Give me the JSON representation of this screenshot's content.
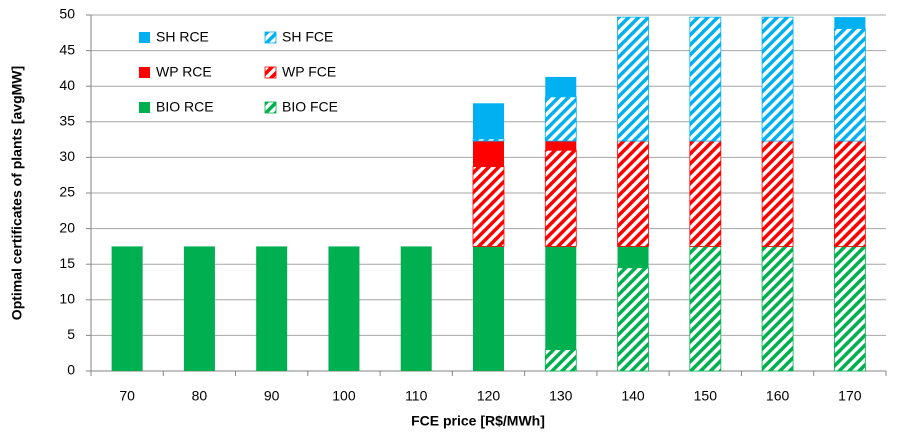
{
  "chart_data": {
    "type": "stacked_bar",
    "xlabel": "FCE price [R$/MWh]",
    "ylabel": "Optimal certificates of plants [avgMW]",
    "categories": [
      "70",
      "80",
      "90",
      "100",
      "110",
      "120",
      "130",
      "140",
      "150",
      "160",
      "170"
    ],
    "series": [
      {
        "name": "BIO FCE",
        "color": "#00b050",
        "fill": "hatch",
        "values": [
          0,
          0,
          0,
          0,
          0,
          0,
          3,
          14.5,
          17.5,
          17.5,
          17.5
        ]
      },
      {
        "name": "BIO RCE",
        "color": "#00b050",
        "fill": "solid",
        "values": [
          17.5,
          17.5,
          17.5,
          17.5,
          17.5,
          17.5,
          14.5,
          3,
          0,
          0,
          0
        ]
      },
      {
        "name": "WP FCE",
        "color": "#ff0000",
        "fill": "hatch",
        "values": [
          0,
          0,
          0,
          0,
          0,
          11.2,
          13.5,
          14.8,
          14.8,
          14.8,
          14.8
        ]
      },
      {
        "name": "WP RCE",
        "color": "#ff0000",
        "fill": "solid",
        "values": [
          0,
          0,
          0,
          0,
          0,
          3.6,
          1.3,
          0,
          0,
          0,
          0
        ]
      },
      {
        "name": "SH FCE",
        "color": "#00b0f0",
        "fill": "hatch",
        "values": [
          0,
          0,
          0,
          0,
          0,
          0.3,
          6.2,
          17.4,
          17.4,
          17.4,
          15.8
        ]
      },
      {
        "name": "SH RCE",
        "color": "#00b0f0",
        "fill": "solid",
        "values": [
          0,
          0,
          0,
          0,
          0,
          5,
          2.8,
          0,
          0,
          0,
          1.6
        ]
      }
    ],
    "ylim": [
      0,
      50
    ],
    "yticks": [
      0,
      5,
      10,
      15,
      20,
      25,
      30,
      35,
      40,
      45,
      50
    ],
    "grid": true
  }
}
